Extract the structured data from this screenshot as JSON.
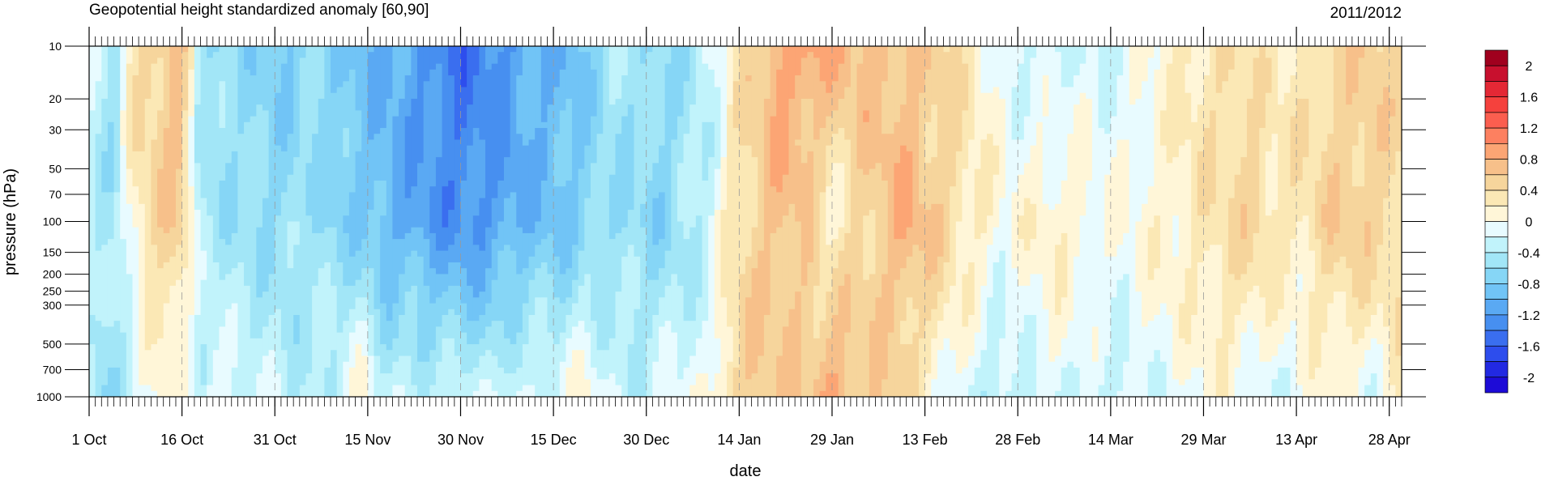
{
  "chart_data": {
    "type": "heatmap",
    "title": "Geopotential height standardized anomaly [60,90]",
    "subtitle": "2011/2012",
    "xlabel": "date",
    "ylabel": "pressure (hPa)",
    "x_ticks": [
      "1 Oct",
      "16 Oct",
      "31 Oct",
      "15 Nov",
      "30 Nov",
      "15 Dec",
      "30 Dec",
      "14 Jan",
      "29 Jan",
      "13 Feb",
      "28 Feb",
      "14 Mar",
      "29 Mar",
      "13 Apr",
      "28 Apr"
    ],
    "x_tick_days": [
      0,
      15,
      30,
      45,
      60,
      75,
      90,
      105,
      120,
      135,
      150,
      165,
      180,
      195,
      210
    ],
    "xlim_days": [
      0,
      212
    ],
    "y_ticks": [
      10,
      20,
      30,
      50,
      70,
      100,
      150,
      200,
      250,
      300,
      500,
      700,
      1000
    ],
    "ylim": [
      10,
      1000
    ],
    "y_scale": "log",
    "y_inverted": true,
    "colorbar": {
      "labels": [
        "2",
        "1.6",
        "1.2",
        "0.8",
        "0.4",
        "0",
        "-0.4",
        "-0.8",
        "-1.2",
        "-1.6",
        "-2"
      ],
      "levels": [
        2.2,
        2.0,
        1.8,
        1.6,
        1.4,
        1.2,
        1.0,
        0.8,
        0.6,
        0.4,
        0.2,
        0,
        -0.2,
        -0.4,
        -0.6,
        -0.8,
        -1.0,
        -1.2,
        -1.4,
        -1.6,
        -1.8,
        -2.0,
        -2.2
      ],
      "colors": [
        "#a0001e",
        "#c8102e",
        "#e42835",
        "#f5413d",
        "#fb5e4f",
        "#fd8060",
        "#fca574",
        "#f7c08a",
        "#f6d59c",
        "#fbe8b5",
        "#fff6d8",
        "#e8fbff",
        "#c1f3fb",
        "#a2e6f7",
        "#86d6f6",
        "#71c4f6",
        "#5aa9f3",
        "#478ff0",
        "#3a6eef",
        "#2d4ded",
        "#2229e2",
        "#1d0bd7"
      ]
    },
    "series": [
      {
        "days": [
          0,
          2,
          4,
          6,
          8,
          10,
          12,
          14,
          16,
          18,
          20,
          24,
          28,
          32,
          36,
          40,
          44,
          48,
          52,
          56,
          60,
          64,
          68,
          72,
          76,
          80,
          84,
          88,
          92,
          96,
          100,
          104,
          108,
          112,
          116,
          120,
          124,
          128,
          132,
          136,
          140,
          144,
          148,
          152,
          156,
          160,
          164,
          168,
          172,
          176,
          180,
          184,
          188,
          192,
          196,
          200,
          204,
          208,
          212
        ],
        "p10_upper": [
          -0.3,
          -0.4,
          -0.6,
          0.2,
          0.4,
          0.5,
          0.6,
          0.8,
          0.3,
          -0.5,
          -0.6,
          -0.6,
          -0.7,
          -0.8,
          -0.6,
          -0.8,
          -0.9,
          -1.0,
          -1.1,
          -1.3,
          -1.5,
          -1.3,
          -1.2,
          -1.0,
          -1.0,
          -0.8,
          -0.4,
          -0.5,
          -0.6,
          -0.5,
          -0.3,
          0.2,
          0.6,
          0.9,
          0.9,
          0.8,
          0.7,
          0.7,
          0.6,
          0.5,
          0.4,
          0.1,
          -0.1,
          -0.2,
          -0.3,
          -0.2,
          -0.2,
          -0.1,
          0.0,
          0.2,
          0.3,
          0.4,
          0.3,
          0.2,
          0.3,
          0.4,
          0.5,
          0.5,
          0.4
        ],
        "p100_mid": [
          -0.2,
          -0.4,
          -0.5,
          -0.1,
          0.3,
          0.4,
          0.5,
          0.6,
          0.3,
          -0.4,
          -0.5,
          -0.5,
          -0.6,
          -0.6,
          -0.5,
          -0.7,
          -0.8,
          -1.0,
          -1.1,
          -1.2,
          -1.3,
          -1.2,
          -1.1,
          -0.9,
          -0.9,
          -0.7,
          -0.6,
          -0.6,
          -0.7,
          -0.5,
          -0.3,
          0.3,
          0.5,
          0.7,
          0.5,
          0.1,
          0.4,
          0.6,
          0.8,
          0.6,
          0.4,
          0.2,
          0.0,
          0.1,
          0.2,
          0.1,
          0.0,
          0.0,
          0.1,
          0.2,
          0.3,
          0.4,
          0.5,
          0.3,
          0.3,
          0.5,
          0.6,
          0.5,
          0.4
        ],
        "p1000_lower": [
          -0.3,
          -0.6,
          -0.5,
          -0.4,
          -0.2,
          -0.1,
          0.2,
          0.0,
          -0.2,
          -0.3,
          0.1,
          -0.3,
          -0.2,
          -0.3,
          -0.4,
          -0.2,
          0.1,
          -0.3,
          -0.2,
          -0.3,
          -0.2,
          -0.3,
          -0.1,
          -0.2,
          -0.1,
          0.1,
          -0.2,
          -0.3,
          -0.2,
          -0.1,
          -0.1,
          0.5,
          0.6,
          0.5,
          0.6,
          0.9,
          0.6,
          0.5,
          0.4,
          0.1,
          -0.1,
          -0.3,
          -0.4,
          -0.2,
          -0.1,
          -0.2,
          -0.3,
          -0.2,
          -0.1,
          -0.1,
          0.0,
          0.1,
          -0.1,
          -0.2,
          -0.1,
          0.1,
          0.0,
          -0.1,
          0.2
        ]
      }
    ]
  }
}
